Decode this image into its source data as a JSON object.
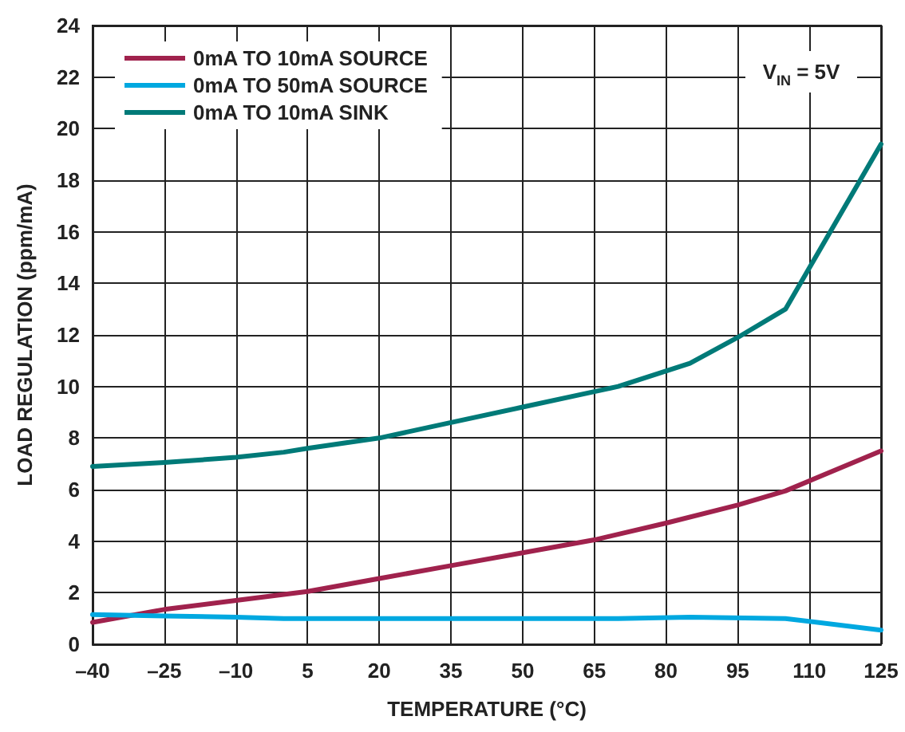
{
  "chart_data": {
    "type": "line",
    "xlabel": "TEMPERATURE (°C)",
    "ylabel": "LOAD REGULATION (ppm/mA)",
    "annotations": [
      "V$_{IN}$ = 5V"
    ],
    "series": [
      {
        "name": "0mA TO 10mA SOURCE",
        "color": "#a0224d",
        "x": [
          -40,
          -25,
          -10,
          5,
          20,
          35,
          50,
          65,
          80,
          95,
          105,
          125
        ],
        "values": [
          0.85,
          1.35,
          1.7,
          2.05,
          2.55,
          3.05,
          3.55,
          4.05,
          4.7,
          5.4,
          5.95,
          7.5
        ]
      },
      {
        "name": "0mA TO 50mA SOURCE",
        "color": "#00a8e0",
        "x": [
          -40,
          -25,
          -10,
          0,
          20,
          50,
          70,
          85,
          105,
          125
        ],
        "values": [
          1.15,
          1.1,
          1.05,
          1.0,
          1.0,
          1.0,
          1.0,
          1.05,
          1.0,
          0.55
        ]
      },
      {
        "name": "0mA TO 10mA SINK",
        "color": "#007a78",
        "x": [
          -40,
          -25,
          -10,
          0,
          5,
          20,
          35,
          50,
          65,
          70,
          85,
          95,
          105,
          125
        ],
        "values": [
          6.9,
          7.05,
          7.25,
          7.45,
          7.6,
          8.0,
          8.6,
          9.2,
          9.8,
          10.0,
          10.9,
          11.9,
          13.0,
          19.4
        ]
      }
    ],
    "xlim": [
      -40,
      125
    ],
    "xticks": [
      {
        "value": -40,
        "label": "–40"
      },
      {
        "value": -25,
        "label": "–25"
      },
      {
        "value": -10,
        "label": "–10"
      },
      5,
      20,
      35,
      50,
      65,
      80,
      95,
      110,
      125
    ],
    "ylim": [
      0,
      24
    ],
    "yticks": [
      0,
      2,
      4,
      6,
      8,
      10,
      12,
      14,
      16,
      18,
      20,
      22,
      24
    ],
    "grid": true,
    "legend": "top left",
    "marker": "none",
    "line_style": "solid"
  }
}
